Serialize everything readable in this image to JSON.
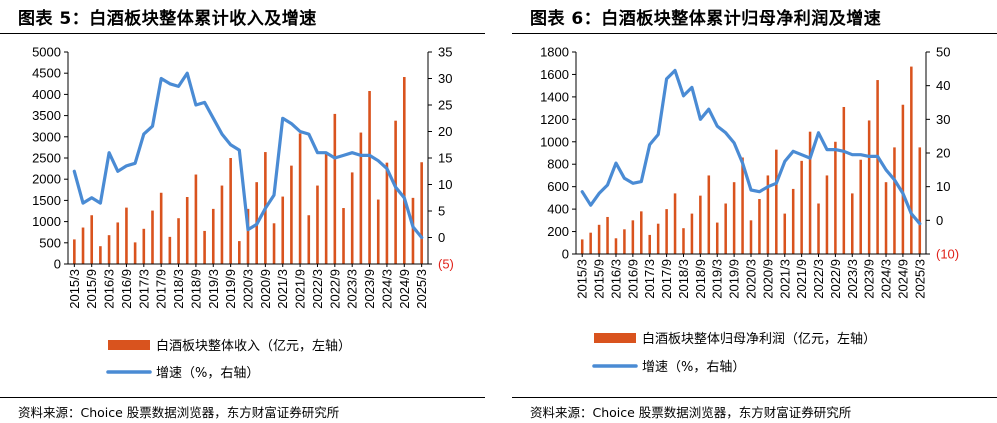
{
  "chart_data": [
    {
      "type": "bar+line",
      "title": "图表 5：白酒板块整体累计收入及增速",
      "source": "资料来源：Choice 股票数据浏览器，东方财富证券研究所",
      "x_tick_labels": [
        "2015/3",
        "2015/9",
        "2016/3",
        "2016/9",
        "2017/3",
        "2017/9",
        "2018/3",
        "2018/9",
        "2019/3",
        "2019/9",
        "2020/3",
        "2020/9",
        "2021/3",
        "2021/9",
        "2022/3",
        "2022/9",
        "2023/3",
        "2023/9",
        "2024/3",
        "2024/9",
        "2025/3"
      ],
      "y_left": {
        "ticks": [
          0,
          500,
          1000,
          1500,
          2000,
          2500,
          3000,
          3500,
          4000,
          4500,
          5000
        ],
        "lim": [
          0,
          5000
        ]
      },
      "y_right": {
        "ticks": [
          "(5)",
          "0",
          "5",
          "10",
          "15",
          "20",
          "25",
          "30",
          "35"
        ],
        "lim": [
          -5,
          35
        ]
      },
      "series": [
        {
          "name": "白酒板块整体收入（亿元，左轴）",
          "axis": "left",
          "kind": "bar",
          "color": "#D9531E",
          "values": [
            580,
            860,
            1150,
            420,
            680,
            980,
            1330,
            510,
            830,
            1260,
            1680,
            640,
            1080,
            1580,
            2110,
            780,
            1300,
            1850,
            2500,
            540,
            1300,
            1930,
            2640,
            960,
            1590,
            2320,
            3080,
            1150,
            1850,
            2620,
            3540,
            1320,
            2160,
            3100,
            4080,
            1520,
            2390,
            3380,
            4410,
            1560,
            2400
          ]
        },
        {
          "name": "增速（%，右轴）",
          "axis": "right",
          "kind": "line",
          "color": "#4A8BD4",
          "values": [
            12.5,
            6.5,
            7.5,
            6.5,
            16,
            12.5,
            13.5,
            14,
            19.5,
            21,
            30,
            29,
            28.5,
            31,
            25,
            25.5,
            22.5,
            19.5,
            17.5,
            16.5,
            1.5,
            2.5,
            5.5,
            8,
            22.5,
            21.5,
            20,
            19.5,
            16,
            16,
            15,
            15.5,
            16,
            15.5,
            15.5,
            14.5,
            13,
            9.5,
            7.5,
            2,
            0
          ]
        }
      ]
    },
    {
      "type": "bar+line",
      "title": "图表 6：白酒板块整体累计归母净利润及增速",
      "source": "资料来源：Choice 股票数据浏览器，东方财富证券研究所",
      "x_tick_labels": [
        "2015/3",
        "2015/9",
        "2016/3",
        "2016/9",
        "2017/3",
        "2017/9",
        "2018/3",
        "2018/9",
        "2019/3",
        "2019/9",
        "2020/3",
        "2020/9",
        "2021/3",
        "2021/9",
        "2022/3",
        "2022/9",
        "2023/3",
        "2023/9",
        "2024/3",
        "2024/9",
        "2025/3"
      ],
      "y_left": {
        "ticks": [
          0,
          200,
          400,
          600,
          800,
          1000,
          1200,
          1400,
          1600,
          1800
        ],
        "lim": [
          0,
          1800
        ]
      },
      "y_right": {
        "ticks": [
          "(10)",
          "0",
          "10",
          "20",
          "30",
          "40",
          "50"
        ],
        "lim": [
          -10,
          50
        ]
      },
      "series": [
        {
          "name": "白酒板块整体归母净利润（亿元，左轴）",
          "axis": "left",
          "kind": "bar",
          "color": "#D9531E",
          "values": [
            130,
            190,
            260,
            330,
            140,
            220,
            300,
            380,
            170,
            270,
            400,
            540,
            230,
            360,
            520,
            700,
            280,
            450,
            640,
            860,
            300,
            490,
            700,
            930,
            360,
            580,
            830,
            1090,
            450,
            700,
            1000,
            1310,
            540,
            840,
            1190,
            1550,
            640,
            950,
            1330,
            1670,
            950
          ]
        },
        {
          "name": "增速（%，右轴）",
          "axis": "right",
          "kind": "line",
          "color": "#4A8BD4",
          "values": [
            8.5,
            4.5,
            8,
            10.5,
            17,
            12.5,
            11,
            11.5,
            22.5,
            25.5,
            42,
            44.5,
            37,
            39.5,
            30,
            33,
            28,
            26,
            23,
            17,
            9,
            8.5,
            10,
            11,
            17.5,
            20.5,
            19.5,
            18.5,
            26,
            21,
            21,
            20.5,
            19.5,
            19.5,
            19,
            19,
            15,
            12,
            8,
            2,
            -1
          ]
        }
      ]
    }
  ]
}
